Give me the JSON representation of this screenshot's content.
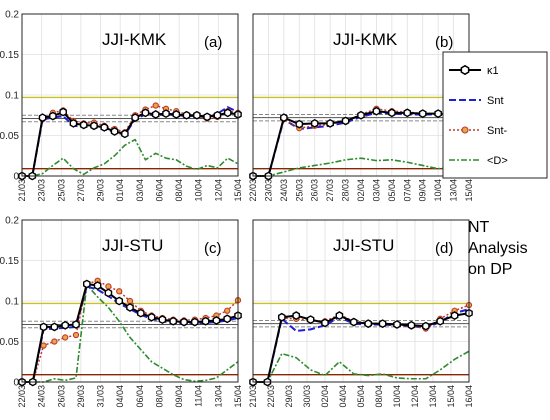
{
  "side_note": [
    "NT",
    "Analysis",
    "on DP"
  ],
  "legend": {
    "position": "right of panel (b)",
    "entries": [
      {
        "key": "kappa1",
        "label": "κ1",
        "color": "#000000"
      },
      {
        "key": "snt",
        "label": "Snt",
        "color": "#1f1fd6"
      },
      {
        "key": "sntm",
        "label": "Snt-",
        "color": "#c0392b"
      },
      {
        "key": "d",
        "label": "<D>",
        "color": "#2e8b2e"
      }
    ]
  },
  "series_colors": {
    "kappa1": "#000000",
    "snt": "#1f1fd6",
    "sntm": "#c0392b",
    "d": "#2e8b2e",
    "upper_threshold": "#c9c32b",
    "lower_threshold": "#8b2500",
    "band": "#888888"
  },
  "chart_data": [
    {
      "type": "line",
      "panel": "(a)",
      "title": "JJI-KMK",
      "ylim": [
        0,
        0.2
      ],
      "yticks": [
        "0",
        "0.05",
        "0.1",
        "0.15",
        "0.2"
      ],
      "xticks": [
        "21/03",
        "23/03",
        "25/03",
        "27/03",
        "29/03",
        "01/04",
        "03/04",
        "06/04",
        "08/04",
        "10/04",
        "12/04",
        "15/04"
      ],
      "grid": true,
      "reference_lines": {
        "upper": 0.097,
        "band_mid": 0.071,
        "band_lo": 0.067,
        "band_hi": 0.075,
        "lower": 0.009
      },
      "series": [
        {
          "key": "kappa1",
          "values": [
            0,
            0,
            0.072,
            0.074,
            0.079,
            0.065,
            0.063,
            0.062,
            0.06,
            0.055,
            0.052,
            0.072,
            0.078,
            0.076,
            0.077,
            0.076,
            0.075,
            0.075,
            0.073,
            0.075,
            0.078,
            0.076
          ]
        },
        {
          "key": "snt",
          "values": [
            0,
            0,
            0.07,
            0.072,
            0.074,
            0.062,
            0.061,
            0.06,
            0.058,
            0.054,
            0.051,
            0.07,
            0.076,
            0.075,
            0.076,
            0.075,
            0.074,
            0.074,
            0.072,
            0.077,
            0.085,
            0.079
          ]
        },
        {
          "key": "sntm",
          "values": [
            0,
            0,
            0.07,
            0.078,
            0.081,
            0.068,
            0.065,
            0.066,
            0.062,
            0.058,
            0.054,
            0.075,
            0.082,
            0.087,
            0.083,
            0.08,
            0.076,
            0.074,
            0.071,
            0.073,
            0.08,
            0.078
          ]
        },
        {
          "key": "d",
          "values": [
            0,
            0,
            0.003,
            0.013,
            0.022,
            0.009,
            0.002,
            0.01,
            0.015,
            0.025,
            0.038,
            0.045,
            0.02,
            0.028,
            0.022,
            0.02,
            0.012,
            0.008,
            0.013,
            0.01,
            0.022,
            0.015
          ]
        }
      ]
    },
    {
      "type": "line",
      "panel": "(b)",
      "title": "JJI-KMK",
      "ylim": [
        0,
        0.2
      ],
      "yticks": [
        "0",
        "0.05",
        "0.1",
        "0.15",
        "0.2"
      ],
      "xticks": [
        "22/03",
        "23/03",
        "24/03",
        "25/03",
        "26/03",
        "27/03",
        "28/03",
        "02/04",
        "03/04",
        "05/04",
        "07/04",
        "09/04",
        "10/04",
        "13/04",
        "15/04"
      ],
      "grid": true,
      "reference_lines": {
        "upper": 0.097,
        "band_mid": 0.072,
        "band_lo": 0.068,
        "band_hi": 0.076,
        "lower": 0.009
      },
      "series": [
        {
          "key": "kappa1",
          "values": [
            0,
            0,
            0.072,
            0.064,
            0.065,
            0.065,
            0.068,
            0.075,
            0.08,
            0.078,
            0.078,
            0.077,
            0.077,
            0.076,
            0.077
          ]
        },
        {
          "key": "snt",
          "values": [
            0,
            0,
            0.07,
            0.058,
            0.06,
            0.062,
            0.066,
            0.073,
            0.078,
            0.077,
            0.076,
            0.076,
            0.076,
            0.078,
            0.079
          ]
        },
        {
          "key": "sntm",
          "values": [
            0,
            0,
            0.07,
            0.059,
            0.062,
            0.064,
            0.068,
            0.076,
            0.083,
            0.08,
            0.079,
            0.077,
            0.077,
            0.075,
            0.078
          ]
        },
        {
          "key": "d",
          "values": [
            0,
            0,
            0.005,
            0.01,
            0.013,
            0.016,
            0.02,
            0.022,
            0.019,
            0.02,
            0.017,
            0.013,
            0.009,
            0.011,
            0.015
          ]
        }
      ]
    },
    {
      "type": "line",
      "panel": "(c)",
      "title": "JJI-STU",
      "ylim": [
        0,
        0.2
      ],
      "yticks": [
        "0",
        "0.05",
        "0.1",
        "0.15",
        "0.2"
      ],
      "xticks": [
        "22/03",
        "24/03",
        "26/03",
        "29/03",
        "31/03",
        "04/04",
        "06/04",
        "08/04",
        "09/04",
        "11/04",
        "13/04",
        "15/04"
      ],
      "grid": true,
      "reference_lines": {
        "upper": 0.097,
        "band_mid": 0.071,
        "band_lo": 0.067,
        "band_hi": 0.075,
        "lower": 0.009
      },
      "series": [
        {
          "key": "kappa1",
          "values": [
            0,
            0,
            0.068,
            0.068,
            0.07,
            0.071,
            0.121,
            0.119,
            0.11,
            0.1,
            0.092,
            0.085,
            0.08,
            0.077,
            0.075,
            0.074,
            0.074,
            0.075,
            0.076,
            0.078,
            0.082
          ]
        },
        {
          "key": "snt",
          "values": [
            0,
            0,
            0.065,
            0.066,
            0.067,
            0.068,
            0.118,
            0.114,
            0.106,
            0.097,
            0.09,
            0.083,
            0.078,
            0.075,
            0.073,
            0.072,
            0.072,
            0.073,
            0.074,
            0.076,
            0.079
          ]
        },
        {
          "key": "sntm",
          "values": [
            0,
            0,
            0.045,
            0.05,
            0.055,
            0.058,
            0.121,
            0.125,
            0.118,
            0.112,
            0.1,
            0.088,
            0.082,
            0.079,
            0.077,
            0.076,
            0.077,
            0.079,
            0.082,
            0.088,
            0.101
          ]
        },
        {
          "key": "d",
          "values": [
            0,
            0,
            0,
            0.004,
            0.002,
            0.005,
            0.12,
            0.105,
            0.092,
            0.075,
            0.055,
            0.04,
            0.025,
            0.017,
            0.009,
            0.003,
            0.001,
            0.002,
            0.005,
            0.015,
            0.025
          ]
        }
      ]
    },
    {
      "type": "line",
      "panel": "(d)",
      "title": "JJI-STU",
      "ylim": [
        0,
        0.2
      ],
      "yticks": [
        "0",
        "0.05",
        "0.1",
        "0.15",
        "0.2"
      ],
      "xticks": [
        "21/03",
        "22/03",
        "29/03",
        "30/03",
        "02/04",
        "04/04",
        "05/04",
        "08/04",
        "10/04",
        "12/04",
        "13/04",
        "15/04",
        "16/04"
      ],
      "grid": true,
      "reference_lines": {
        "upper": 0.097,
        "band_mid": 0.072,
        "band_lo": 0.068,
        "band_hi": 0.076,
        "lower": 0.009
      },
      "series": [
        {
          "key": "kappa1",
          "values": [
            0,
            0,
            0.08,
            0.082,
            0.077,
            0.073,
            0.082,
            0.074,
            0.072,
            0.072,
            0.071,
            0.07,
            0.069,
            0.075,
            0.082,
            0.085
          ]
        },
        {
          "key": "snt",
          "values": [
            0,
            0,
            0.078,
            0.063,
            0.065,
            0.07,
            0.08,
            0.072,
            0.071,
            0.071,
            0.07,
            0.069,
            0.067,
            0.074,
            0.085,
            0.09
          ]
        },
        {
          "key": "sntm",
          "values": [
            0,
            0,
            0.079,
            0.078,
            0.076,
            0.075,
            0.083,
            0.075,
            0.073,
            0.072,
            0.07,
            0.069,
            0.066,
            0.078,
            0.088,
            0.095
          ]
        },
        {
          "key": "d",
          "values": [
            0,
            0,
            0.035,
            0.03,
            0.015,
            0.008,
            0.025,
            0.01,
            0.008,
            0.01,
            0.005,
            0.004,
            0.004,
            0.015,
            0.028,
            0.038
          ]
        }
      ]
    }
  ]
}
